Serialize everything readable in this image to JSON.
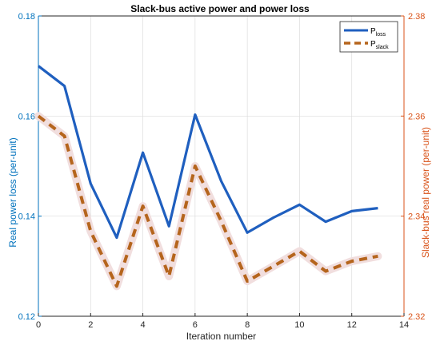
{
  "chart_data": {
    "type": "line",
    "title": "Slack-bus active power and power loss",
    "xlabel": "Iteration number",
    "ylabel_left": "Real power loss (per-unit)",
    "ylabel_right": "Slack-bus real power (per-unit)",
    "xlim": [
      0,
      14
    ],
    "ylim_left": [
      0.12,
      0.18
    ],
    "ylim_right": [
      2.32,
      2.38
    ],
    "x_ticks": [
      0,
      2,
      4,
      6,
      8,
      10,
      12,
      14
    ],
    "y_ticks_left": [
      0.12,
      0.14,
      0.16,
      0.18
    ],
    "y_ticks_right": [
      2.32,
      2.34,
      2.36,
      2.38
    ],
    "grid": true,
    "legend_position": "top-right",
    "colors": {
      "loss": "#1f5fbf",
      "slack": "#b5651d",
      "left_axis": "#0072BD",
      "right_axis": "#D95319"
    },
    "series": [
      {
        "name": "P_loss",
        "legend_main": "P",
        "legend_sub": "loss",
        "axis": "left",
        "style": "solid",
        "x": [
          0,
          1,
          2,
          3,
          4,
          5,
          6,
          7,
          8,
          9,
          10,
          11,
          12,
          13
        ],
        "y": [
          0.17,
          0.166,
          0.1465,
          0.1357,
          0.1527,
          0.138,
          0.1603,
          0.147,
          0.1367,
          0.1397,
          0.1423,
          0.1389,
          0.141,
          0.1416
        ]
      },
      {
        "name": "P_slack",
        "legend_main": "P",
        "legend_sub": "slack",
        "axis": "right",
        "style": "dashed",
        "x": [
          0,
          1,
          2,
          3,
          4,
          5,
          6,
          7,
          8,
          9,
          10,
          11,
          12,
          13
        ],
        "y": [
          2.36,
          2.356,
          2.337,
          2.326,
          2.342,
          2.328,
          2.35,
          2.339,
          2.327,
          2.33,
          2.333,
          2.329,
          2.331,
          2.332
        ]
      }
    ]
  }
}
